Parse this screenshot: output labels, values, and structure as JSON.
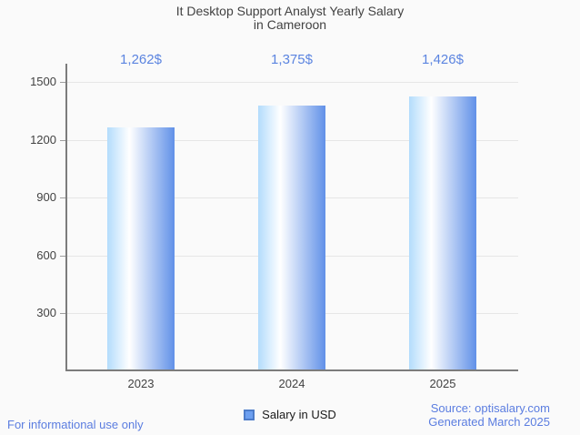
{
  "title": {
    "line1": "It Desktop Support Analyst Yearly Salary",
    "line2": "in Cameroon"
  },
  "chart_data": {
    "type": "bar",
    "categories": [
      "2023",
      "2024",
      "2025"
    ],
    "values": [
      1262,
      1375,
      1426
    ],
    "value_labels": [
      "1,262$",
      "1,375$",
      "1,426$"
    ],
    "series": [
      {
        "name": "Salary in USD",
        "values": [
          1262,
          1375,
          1426
        ]
      }
    ],
    "title": "It Desktop Support Analyst Yearly Salary in Cameroon",
    "xlabel": "",
    "ylabel": "",
    "ylim": [
      0,
      1500
    ],
    "yticks": [
      300,
      600,
      900,
      1200,
      1500
    ],
    "grid": true,
    "legend_position": "bottom"
  },
  "legend": {
    "label": "Salary in USD"
  },
  "footer": {
    "left": "For informational use only",
    "source": "Source: optisalary.com",
    "generated": "Generated March 2025"
  },
  "colors": {
    "background": "#fafafa",
    "title_text": "#424242",
    "accent_text": "#5b84e0",
    "axis_line": "#7c7c7c",
    "gridline": "#e6e6e6",
    "bar_gradient": [
      "#b3dcfc",
      "#ffffff",
      "#6191e8"
    ],
    "bar_gradient_white_stop": "33%",
    "legend_marker_fill": "#6c9ff0",
    "legend_marker_border": "#4d7cc9"
  }
}
